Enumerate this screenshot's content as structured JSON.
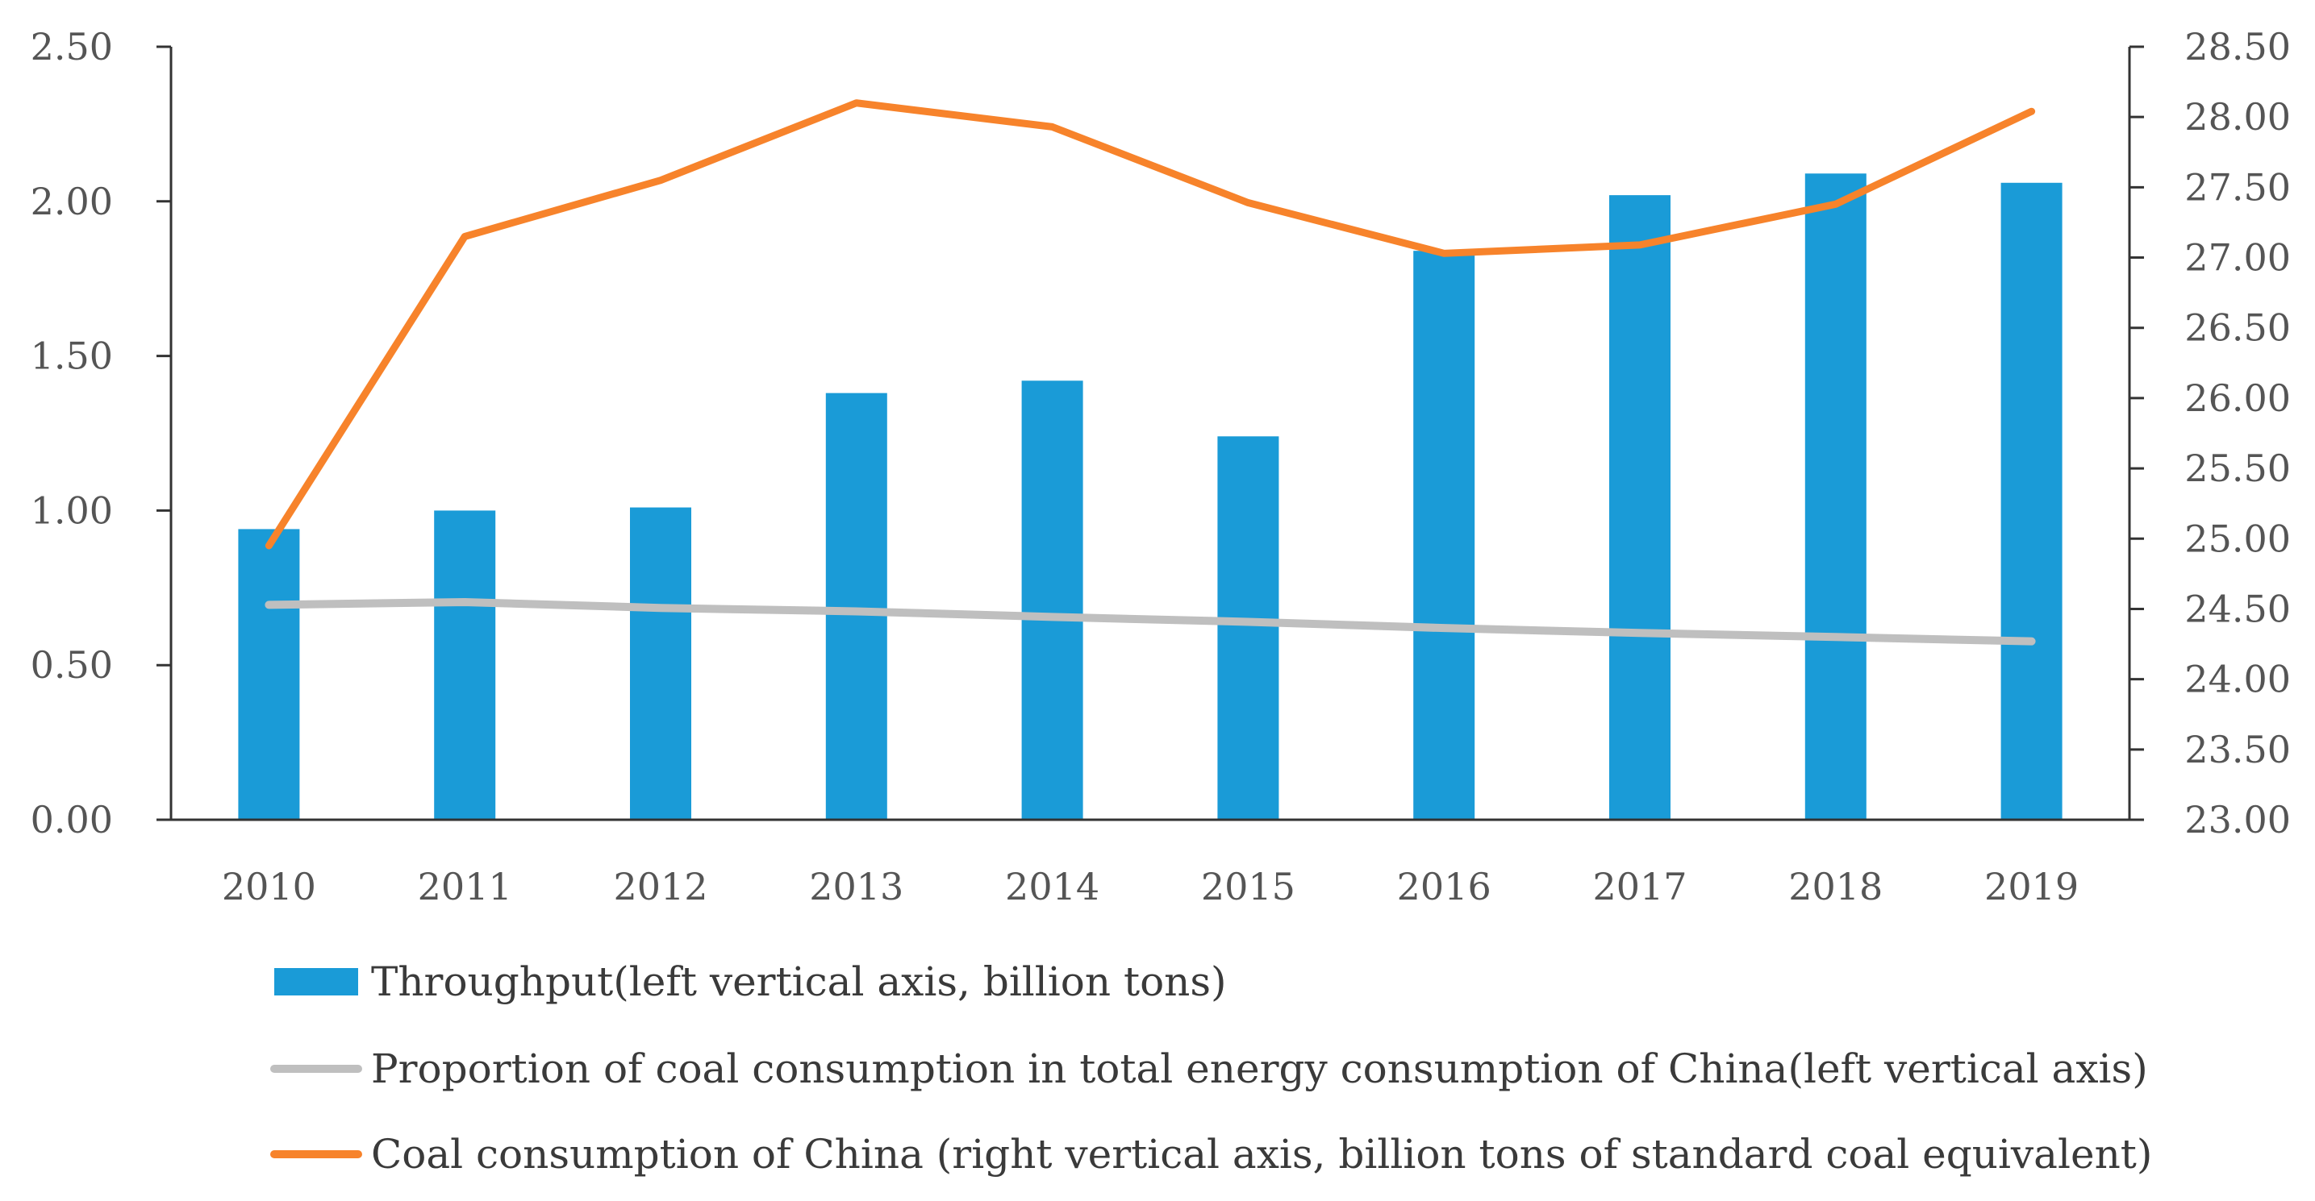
{
  "chart_data": {
    "type": "bar",
    "title": "",
    "xlabel": "",
    "ylabel": "",
    "categories": [
      "2010",
      "2011",
      "2012",
      "2013",
      "2014",
      "2015",
      "2016",
      "2017",
      "2018",
      "2019"
    ],
    "left_axis": {
      "ylim": [
        0,
        2.5
      ],
      "ticks": [
        "0.00",
        "0.50",
        "1.00",
        "1.50",
        "2.00",
        "2.50"
      ]
    },
    "right_axis": {
      "ylim": [
        23,
        28.5
      ],
      "ticks": [
        "23.00",
        "23.50",
        "24.00",
        "24.50",
        "25.00",
        "25.50",
        "26.00",
        "26.50",
        "27.00",
        "27.50",
        "28.00",
        "28.50"
      ]
    },
    "series": [
      {
        "name": "Throughput(left vertical axis, billion tons)",
        "kind": "bar",
        "axis": "left",
        "color": "#1A9BD7",
        "values": [
          0.94,
          1.0,
          1.01,
          1.38,
          1.42,
          1.24,
          1.84,
          2.02,
          2.09,
          2.06
        ]
      },
      {
        "name": "Proportion of coal consumption in total energy consumption of China(left vertical axis)",
        "kind": "line",
        "axis": "left",
        "color": "#BFBFBF",
        "values": [
          0.695,
          0.704,
          0.685,
          0.674,
          0.656,
          0.64,
          0.62,
          0.604,
          0.591,
          0.577
        ]
      },
      {
        "name": "Coal consumption of China (right vertical axis, billion tons of standard coal equivalent)",
        "kind": "line",
        "axis": "right",
        "color": "#F7832B",
        "values": [
          24.95,
          27.15,
          27.55,
          28.1,
          27.93,
          27.39,
          27.03,
          27.09,
          27.38,
          28.04
        ]
      }
    ],
    "grid": false,
    "legend_position": "bottom"
  }
}
